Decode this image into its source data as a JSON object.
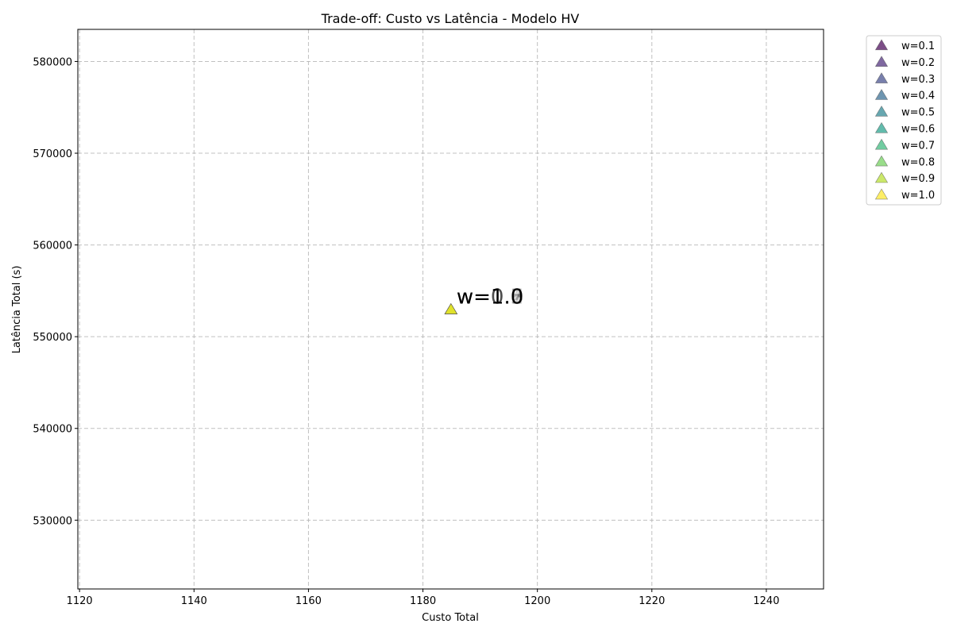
{
  "chart_data": {
    "type": "scatter",
    "title": "Trade-off: Custo vs Latência - Modelo HV",
    "xlabel": "Custo Total",
    "ylabel": "Latência Total (s)",
    "xlim": [
      1119.7,
      1250
    ],
    "ylim": [
      522500,
      583500
    ],
    "xticks": [
      1120,
      1140,
      1160,
      1180,
      1200,
      1220,
      1240
    ],
    "yticks": [
      530000,
      540000,
      550000,
      560000,
      570000,
      580000
    ],
    "grid": true,
    "legend_position": "outside top-right",
    "marker": "triangle",
    "series": [
      {
        "name": "w=0.1",
        "color": "#440154",
        "x": 1184.9,
        "y": 552900,
        "annotation": "w=0.1"
      },
      {
        "name": "w=0.2",
        "color": "#482878",
        "x": 1184.9,
        "y": 552900,
        "annotation": "w=0.2"
      },
      {
        "name": "w=0.3",
        "color": "#3e4989",
        "x": 1184.9,
        "y": 552900,
        "annotation": "w=0.3"
      },
      {
        "name": "w=0.4",
        "color": "#31688e",
        "x": 1184.9,
        "y": 552900,
        "annotation": "w=0.4"
      },
      {
        "name": "w=0.5",
        "color": "#26828e",
        "x": 1184.9,
        "y": 552900,
        "annotation": "w=0.5"
      },
      {
        "name": "w=0.6",
        "color": "#1f9e89",
        "x": 1184.9,
        "y": 552900,
        "annotation": "w=0.6"
      },
      {
        "name": "w=0.7",
        "color": "#35b779",
        "x": 1184.9,
        "y": 552900,
        "annotation": "w=0.7"
      },
      {
        "name": "w=0.8",
        "color": "#6ece58",
        "x": 1184.9,
        "y": 552900,
        "annotation": "w=0.8"
      },
      {
        "name": "w=0.9",
        "color": "#b5de2b",
        "x": 1184.9,
        "y": 552900,
        "annotation": "w=0.9"
      },
      {
        "name": "w=1.0",
        "color": "#fde725",
        "x": 1184.9,
        "y": 552900,
        "annotation": "w=1.0"
      }
    ]
  }
}
